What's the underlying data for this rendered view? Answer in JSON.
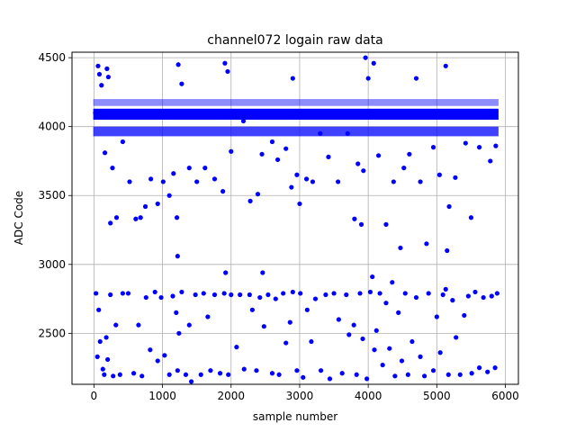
{
  "chart_data": {
    "type": "scatter",
    "title": "channel072 logain raw data",
    "xlabel": "sample number",
    "ylabel": "ADC Code",
    "xlim": [
      -320,
      6190
    ],
    "ylim": [
      2130,
      4540
    ],
    "x_ticks": [
      0,
      1000,
      2000,
      3000,
      4000,
      5000,
      6000
    ],
    "y_ticks": [
      2500,
      3000,
      3500,
      4000,
      4500
    ],
    "grid": true,
    "marker_color": "#0000ff",
    "series": [
      {
        "points": [
          [
            20,
            4100
          ],
          [
            60,
            4440
          ],
          [
            80,
            4380
          ],
          [
            110,
            4300
          ],
          [
            160,
            3810
          ],
          [
            190,
            4420
          ],
          [
            210,
            4360
          ],
          [
            240,
            3300
          ],
          [
            270,
            3700
          ],
          [
            330,
            3340
          ],
          [
            420,
            3890
          ],
          [
            520,
            3600
          ],
          [
            610,
            3330
          ],
          [
            680,
            3340
          ],
          [
            750,
            3420
          ],
          [
            830,
            3620
          ],
          [
            930,
            3440
          ],
          [
            1010,
            3600
          ],
          [
            1100,
            3500
          ],
          [
            1160,
            3660
          ],
          [
            1210,
            3340
          ],
          [
            1220,
            3060
          ],
          [
            1230,
            4450
          ],
          [
            1280,
            4310
          ],
          [
            1390,
            3700
          ],
          [
            1500,
            3600
          ],
          [
            1620,
            3700
          ],
          [
            1760,
            3620
          ],
          [
            1880,
            3530
          ],
          [
            1910,
            4460
          ],
          [
            1950,
            4400
          ],
          [
            2000,
            3820
          ],
          [
            2180,
            4040
          ],
          [
            2280,
            3460
          ],
          [
            2390,
            3510
          ],
          [
            2450,
            3800
          ],
          [
            2600,
            3890
          ],
          [
            2680,
            3760
          ],
          [
            2800,
            3840
          ],
          [
            2880,
            3560
          ],
          [
            2900,
            4350
          ],
          [
            2960,
            3650
          ],
          [
            3000,
            3440
          ],
          [
            3100,
            3620
          ],
          [
            3190,
            3600
          ],
          [
            3300,
            3950
          ],
          [
            3420,
            3780
          ],
          [
            3560,
            3600
          ],
          [
            3700,
            3950
          ],
          [
            3800,
            3330
          ],
          [
            3850,
            3730
          ],
          [
            3900,
            3290
          ],
          [
            3930,
            3680
          ],
          [
            3960,
            4500
          ],
          [
            4000,
            4350
          ],
          [
            4080,
            4460
          ],
          [
            4150,
            3790
          ],
          [
            4260,
            3290
          ],
          [
            4370,
            3600
          ],
          [
            4470,
            3120
          ],
          [
            4520,
            3700
          ],
          [
            4600,
            3800
          ],
          [
            4700,
            4350
          ],
          [
            4760,
            3600
          ],
          [
            4850,
            3150
          ],
          [
            4950,
            3850
          ],
          [
            5040,
            3650
          ],
          [
            5130,
            4440
          ],
          [
            5150,
            3100
          ],
          [
            5180,
            3420
          ],
          [
            5270,
            3630
          ],
          [
            5420,
            3880
          ],
          [
            5500,
            3340
          ],
          [
            5620,
            3850
          ],
          [
            5780,
            3750
          ],
          [
            5860,
            3860
          ],
          [
            30,
            2790
          ],
          [
            50,
            2330
          ],
          [
            70,
            2670
          ],
          [
            90,
            2440
          ],
          [
            130,
            2240
          ],
          [
            150,
            2200
          ],
          [
            180,
            2470
          ],
          [
            200,
            2310
          ],
          [
            240,
            2780
          ],
          [
            280,
            2190
          ],
          [
            320,
            2560
          ],
          [
            380,
            2200
          ],
          [
            420,
            2790
          ],
          [
            500,
            2790
          ],
          [
            580,
            2210
          ],
          [
            650,
            2560
          ],
          [
            700,
            2190
          ],
          [
            760,
            2760
          ],
          [
            820,
            2380
          ],
          [
            890,
            2800
          ],
          [
            930,
            2300
          ],
          [
            980,
            2760
          ],
          [
            1030,
            2340
          ],
          [
            1100,
            2200
          ],
          [
            1150,
            2770
          ],
          [
            1200,
            2650
          ],
          [
            1220,
            2230
          ],
          [
            1240,
            2500
          ],
          [
            1280,
            2800
          ],
          [
            1340,
            2200
          ],
          [
            1390,
            2560
          ],
          [
            1420,
            2150
          ],
          [
            1480,
            2780
          ],
          [
            1560,
            2200
          ],
          [
            1600,
            2790
          ],
          [
            1660,
            2620
          ],
          [
            1700,
            2230
          ],
          [
            1760,
            2780
          ],
          [
            1840,
            2210
          ],
          [
            1900,
            2790
          ],
          [
            1920,
            2940
          ],
          [
            1960,
            2200
          ],
          [
            2000,
            2780
          ],
          [
            2080,
            2400
          ],
          [
            2130,
            2780
          ],
          [
            2190,
            2240
          ],
          [
            2270,
            2780
          ],
          [
            2310,
            2670
          ],
          [
            2370,
            2230
          ],
          [
            2420,
            2760
          ],
          [
            2460,
            2940
          ],
          [
            2480,
            2550
          ],
          [
            2540,
            2780
          ],
          [
            2600,
            2210
          ],
          [
            2650,
            2750
          ],
          [
            2700,
            2200
          ],
          [
            2760,
            2790
          ],
          [
            2800,
            2430
          ],
          [
            2860,
            2580
          ],
          [
            2900,
            2800
          ],
          [
            2960,
            2230
          ],
          [
            3010,
            2790
          ],
          [
            3050,
            2180
          ],
          [
            3110,
            2670
          ],
          [
            3170,
            2440
          ],
          [
            3230,
            2750
          ],
          [
            3310,
            2230
          ],
          [
            3380,
            2780
          ],
          [
            3440,
            2170
          ],
          [
            3500,
            2790
          ],
          [
            3570,
            2600
          ],
          [
            3620,
            2210
          ],
          [
            3680,
            2780
          ],
          [
            3720,
            2490
          ],
          [
            3790,
            2560
          ],
          [
            3830,
            2200
          ],
          [
            3880,
            2790
          ],
          [
            3920,
            2460
          ],
          [
            3980,
            2170
          ],
          [
            4030,
            2800
          ],
          [
            4060,
            2910
          ],
          [
            4090,
            2380
          ],
          [
            4120,
            2520
          ],
          [
            4170,
            2790
          ],
          [
            4210,
            2270
          ],
          [
            4260,
            2720
          ],
          [
            4310,
            2390
          ],
          [
            4350,
            2870
          ],
          [
            4390,
            2190
          ],
          [
            4440,
            2650
          ],
          [
            4490,
            2300
          ],
          [
            4540,
            2790
          ],
          [
            4580,
            2200
          ],
          [
            4640,
            2440
          ],
          [
            4700,
            2760
          ],
          [
            4760,
            2330
          ],
          [
            4820,
            2190
          ],
          [
            4880,
            2790
          ],
          [
            4950,
            2230
          ],
          [
            5000,
            2620
          ],
          [
            5050,
            2360
          ],
          [
            5090,
            2780
          ],
          [
            5130,
            2820
          ],
          [
            5170,
            2200
          ],
          [
            5230,
            2740
          ],
          [
            5280,
            2470
          ],
          [
            5340,
            2200
          ],
          [
            5400,
            2630
          ],
          [
            5460,
            2770
          ],
          [
            5510,
            2210
          ],
          [
            5560,
            2800
          ],
          [
            5620,
            2250
          ],
          [
            5680,
            2760
          ],
          [
            5740,
            2220
          ],
          [
            5800,
            2770
          ],
          [
            5850,
            2250
          ],
          [
            5880,
            2790
          ]
        ]
      }
    ]
  }
}
